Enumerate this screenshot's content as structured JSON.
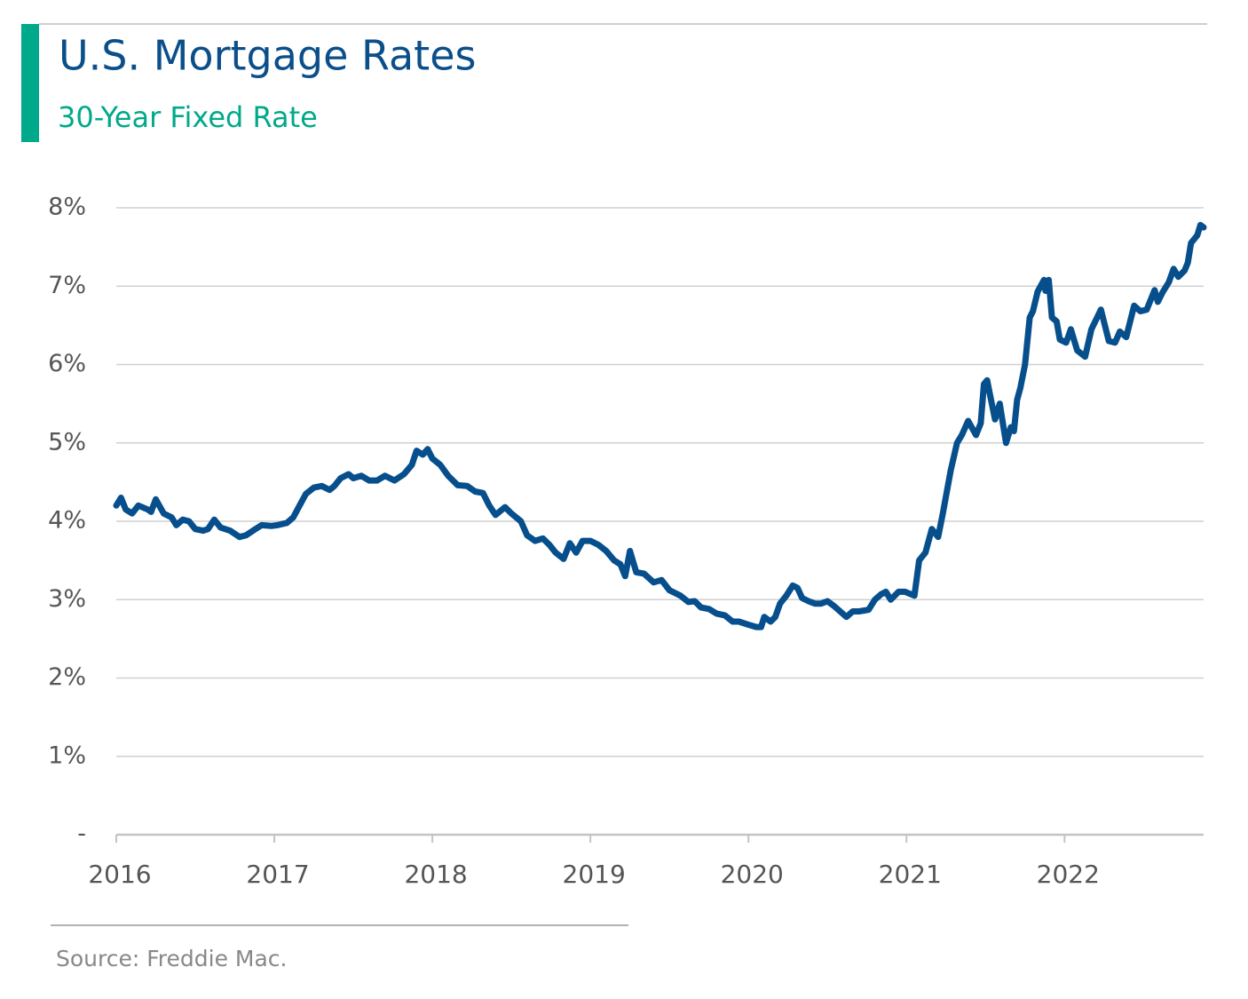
{
  "chart_data": {
    "type": "line",
    "title": "U.S. Mortgage Rates",
    "subtitle": "30-Year Fixed Rate",
    "source": "Source: Freddie Mac.",
    "color": "#064f8c",
    "grid": true,
    "xlim": [
      2016,
      2022.88
    ],
    "xticks": [
      2016,
      2017,
      2018,
      2019,
      2020,
      2021,
      2022
    ],
    "ylim": [
      0,
      8
    ],
    "yticks": [
      {
        "value": 0,
        "label": "-"
      },
      {
        "value": 1,
        "label": "1%"
      },
      {
        "value": 2,
        "label": "2%"
      },
      {
        "value": 3,
        "label": "3%"
      },
      {
        "value": 4,
        "label": "4%"
      },
      {
        "value": 5,
        "label": "5%"
      },
      {
        "value": 6,
        "label": "6%"
      },
      {
        "value": 7,
        "label": "7%"
      },
      {
        "value": 8,
        "label": "8%"
      }
    ],
    "x": [
      2016.0,
      2016.03,
      2016.06,
      2016.1,
      2016.14,
      2016.2,
      2016.22,
      2016.25,
      2016.3,
      2016.35,
      2016.38,
      2016.42,
      2016.46,
      2016.5,
      2016.55,
      2016.58,
      2016.62,
      2016.66,
      2016.72,
      2016.78,
      2016.82,
      2016.88,
      2016.92,
      2016.98,
      2017.02,
      2017.08,
      2017.12,
      2017.16,
      2017.2,
      2017.25,
      2017.3,
      2017.35,
      2017.38,
      2017.42,
      2017.47,
      2017.5,
      2017.55,
      2017.6,
      2017.65,
      2017.7,
      2017.76,
      2017.82,
      2017.87,
      2017.9,
      2017.94,
      2017.97,
      2018.0,
      2018.05,
      2018.1,
      2018.16,
      2018.22,
      2018.27,
      2018.32,
      2018.36,
      2018.4,
      2018.46,
      2018.5,
      2018.56,
      2018.6,
      2018.65,
      2018.7,
      2018.74,
      2018.78,
      2018.83,
      2018.87,
      2018.91,
      2018.95,
      2019.0,
      2019.05,
      2019.1,
      2019.15,
      2019.19,
      2019.22,
      2019.25,
      2019.29,
      2019.34,
      2019.4,
      2019.45,
      2019.5,
      2019.57,
      2019.62,
      2019.66,
      2019.7,
      2019.75,
      2019.8,
      2019.85,
      2019.9,
      2019.94,
      2020.0,
      2020.05,
      2020.08,
      2020.1,
      2020.14,
      2020.17,
      2020.2,
      2020.24,
      2020.28,
      2020.31,
      2020.34,
      2020.38,
      2020.42,
      2020.46,
      2020.5,
      2020.54,
      2020.58,
      2020.62,
      2020.66,
      2020.7,
      2020.76,
      2020.8,
      2020.84,
      2020.87,
      2020.9,
      2020.95,
      2020.99,
      2021.05,
      2021.08,
      2021.12,
      2021.16,
      2021.2,
      2021.23,
      2021.28,
      2021.32,
      2021.35,
      2021.39,
      2021.44,
      2021.47,
      2021.49,
      2021.51,
      2021.53,
      2021.56,
      2021.59,
      2021.63,
      2021.66,
      2021.68,
      2021.7,
      2021.72,
      2021.75,
      2021.78,
      2021.8,
      2021.83,
      2021.87,
      2021.88,
      2021.9,
      2021.92,
      2021.95,
      2021.97,
      2022.01,
      2022.04,
      2022.08,
      2022.13,
      2022.17,
      2022.23,
      2022.28,
      2022.32,
      2022.35,
      2022.39,
      2022.44,
      2022.48,
      2022.52,
      2022.57,
      2022.59,
      2022.62,
      2022.66,
      2022.69,
      2022.72,
      2022.76,
      2022.78,
      2022.8,
      2022.84,
      2022.86,
      2022.88
    ],
    "values": [
      4.2,
      4.3,
      4.15,
      4.1,
      4.2,
      4.15,
      4.12,
      4.28,
      4.1,
      4.05,
      3.95,
      4.02,
      4.0,
      3.9,
      3.88,
      3.9,
      4.02,
      3.92,
      3.88,
      3.8,
      3.82,
      3.9,
      3.95,
      3.94,
      3.95,
      3.98,
      4.05,
      4.2,
      4.35,
      4.43,
      4.45,
      4.4,
      4.45,
      4.55,
      4.6,
      4.55,
      4.58,
      4.52,
      4.52,
      4.58,
      4.52,
      4.6,
      4.72,
      4.9,
      4.85,
      4.92,
      4.8,
      4.72,
      4.58,
      4.46,
      4.45,
      4.38,
      4.36,
      4.2,
      4.08,
      4.18,
      4.1,
      4.0,
      3.82,
      3.75,
      3.78,
      3.7,
      3.6,
      3.52,
      3.72,
      3.6,
      3.75,
      3.75,
      3.7,
      3.62,
      3.5,
      3.45,
      3.3,
      3.62,
      3.35,
      3.33,
      3.22,
      3.25,
      3.12,
      3.05,
      2.97,
      2.98,
      2.9,
      2.88,
      2.82,
      2.8,
      2.72,
      2.72,
      2.68,
      2.65,
      2.65,
      2.78,
      2.72,
      2.78,
      2.95,
      3.05,
      3.18,
      3.15,
      3.02,
      2.98,
      2.95,
      2.95,
      2.98,
      2.92,
      2.85,
      2.78,
      2.85,
      2.85,
      2.87,
      3.0,
      3.07,
      3.1,
      3.0,
      3.1,
      3.1,
      3.05,
      3.5,
      3.6,
      3.9,
      3.8,
      4.1,
      4.65,
      5.0,
      5.1,
      5.28,
      5.1,
      5.25,
      5.75,
      5.8,
      5.6,
      5.3,
      5.5,
      5.0,
      5.2,
      5.15,
      5.55,
      5.7,
      6.0,
      6.6,
      6.68,
      6.93,
      7.08,
      6.94,
      7.08,
      6.6,
      6.55,
      6.32,
      6.28,
      6.45,
      6.18,
      6.1,
      6.45,
      6.7,
      6.3,
      6.28,
      6.42,
      6.35,
      6.75,
      6.68,
      6.7,
      6.95,
      6.8,
      6.92,
      7.05,
      7.22,
      7.12,
      7.2,
      7.3,
      7.55,
      7.65,
      7.78,
      7.75
    ]
  }
}
